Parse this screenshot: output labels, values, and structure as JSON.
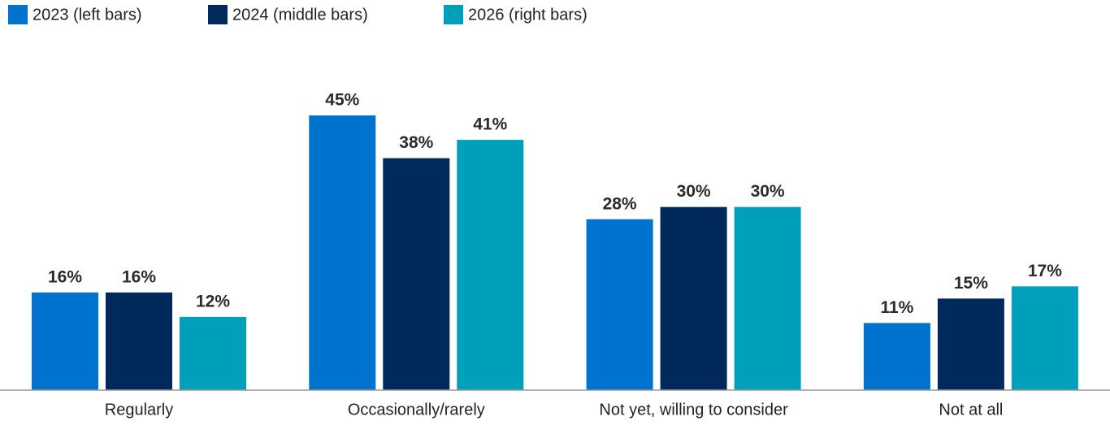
{
  "chart_data": {
    "type": "bar",
    "categories": [
      "Regularly",
      "Occasionally/rarely",
      "Not yet, willing to consider",
      "Not at all"
    ],
    "series": [
      {
        "name": "2023 (left bars)",
        "color": "#0073cf",
        "values": [
          16,
          45,
          28,
          11
        ],
        "value_labels": [
          "16%",
          "45%",
          "28%",
          "11%"
        ]
      },
      {
        "name": "2024 (middle bars)",
        "color": "#002a5c",
        "values": [
          16,
          38,
          30,
          15
        ],
        "value_labels": [
          "16%",
          "38%",
          "30%",
          "15%"
        ]
      },
      {
        "name": "2026 (right bars)",
        "color": "#00a0bb",
        "values": [
          12,
          41,
          30,
          17
        ],
        "value_labels": [
          "12%",
          "41%",
          "30%",
          "17%"
        ]
      }
    ]
  }
}
